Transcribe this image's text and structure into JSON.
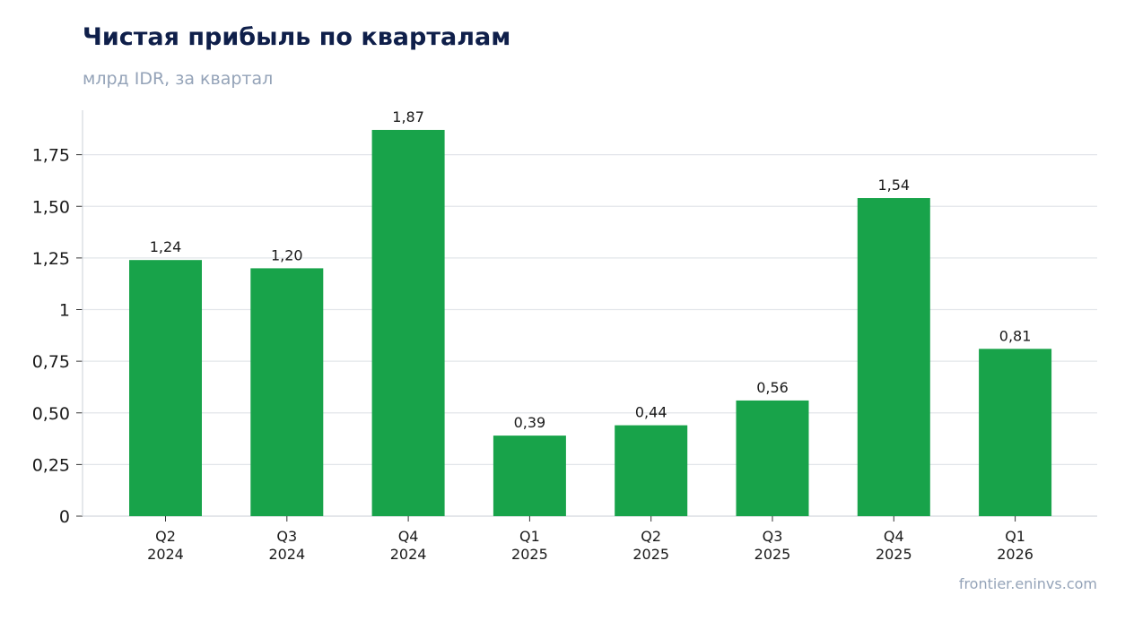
{
  "header": {
    "title": "Чистая прибыль по кварталам",
    "subtitle": "млрд IDR, за квартал"
  },
  "footer": {
    "source": "frontier.eninvs.com"
  },
  "colors": {
    "bar": "#18a34a",
    "grid": "#e2e5ea",
    "axis": "#d4d8de",
    "text": "#1a1a1a"
  },
  "chart_data": {
    "type": "bar",
    "categories": [
      [
        "Q2",
        "2024"
      ],
      [
        "Q3",
        "2024"
      ],
      [
        "Q4",
        "2024"
      ],
      [
        "Q1",
        "2025"
      ],
      [
        "Q2",
        "2025"
      ],
      [
        "Q3",
        "2025"
      ],
      [
        "Q4",
        "2025"
      ],
      [
        "Q1",
        "2026"
      ]
    ],
    "values": [
      1.24,
      1.2,
      1.87,
      0.39,
      0.44,
      0.56,
      1.54,
      0.81
    ],
    "data_labels": [
      "1,24",
      "1,20",
      "1,87",
      "0,39",
      "0,44",
      "0,56",
      "1,54",
      "0,81"
    ],
    "yticks": [
      0,
      0.25,
      0.5,
      0.75,
      1,
      1.25,
      1.5,
      1.75
    ],
    "ytick_labels": [
      "0",
      "0,25",
      "0,50",
      "0,75",
      "1",
      "1,25",
      "1,50",
      "1,75"
    ],
    "ylim": [
      0,
      1.96
    ],
    "title": "Чистая прибыль по кварталам",
    "subtitle": "млрд IDR, за квартал",
    "xlabel": "",
    "ylabel": "",
    "grid": true,
    "legend": false
  }
}
